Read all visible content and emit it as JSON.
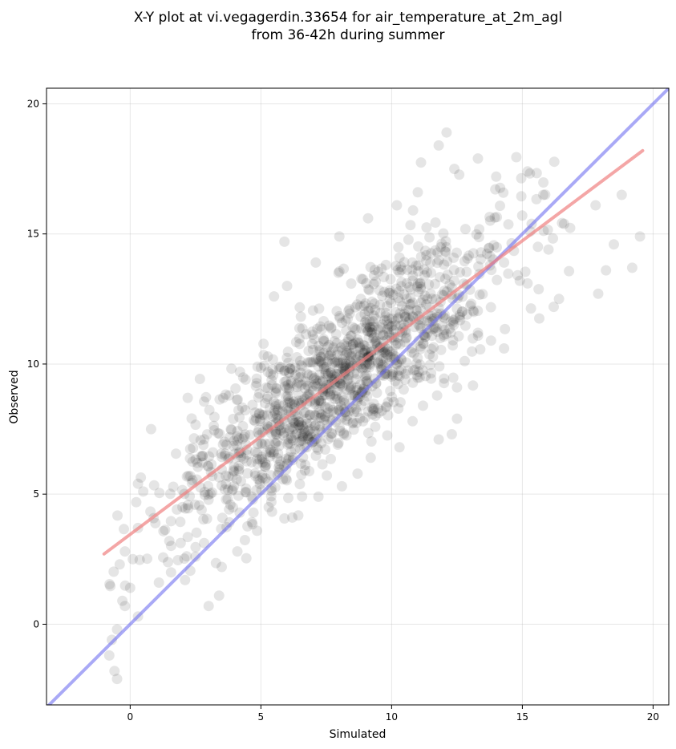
{
  "chart_data": {
    "type": "scatter",
    "title_lines": [
      "X-Y plot at vi.vegagerdin.33654 for air_temperature_at_2m_agl",
      "from 36-42h during summer"
    ],
    "xlabel": "Simulated",
    "ylabel": "Observed",
    "xlim": [
      -3.2,
      20.6
    ],
    "ylim": [
      -3.1,
      20.6
    ],
    "x_ticks": [
      0,
      5,
      10,
      15,
      20
    ],
    "y_ticks": [
      0,
      5,
      10,
      15,
      20
    ],
    "grid": true,
    "colors": {
      "points": "#000000",
      "regression": "#f08080",
      "identity": "#6f6ff0"
    },
    "regression_line": {
      "x": [
        -1.0,
        19.6
      ],
      "y": [
        2.7,
        18.2
      ]
    },
    "identity_line": {
      "x": [
        -3.2,
        20.6
      ],
      "y": [
        -3.2,
        20.6
      ]
    },
    "point_cloud": {
      "count": 1300,
      "slope": 0.75,
      "intercept": 3.5,
      "x_mean": 8.0,
      "x_sd": 3.1,
      "residual_sd": 1.5
    },
    "points": [
      [
        -0.6,
        -1.8
      ],
      [
        -0.5,
        -2.1
      ],
      [
        -0.8,
        -1.2
      ],
      [
        -0.7,
        -0.6
      ],
      [
        -0.5,
        -0.2
      ],
      [
        -0.3,
        0.9
      ],
      [
        -0.2,
        0.7
      ],
      [
        0.0,
        1.4
      ],
      [
        0.3,
        0.3
      ],
      [
        -0.4,
        2.3
      ],
      [
        -0.2,
        2.8
      ],
      [
        0.1,
        2.5
      ],
      [
        0.3,
        3.7
      ],
      [
        0.5,
        5.1
      ],
      [
        0.3,
        5.4
      ],
      [
        0.8,
        7.5
      ],
      [
        2.2,
        8.7
      ],
      [
        3.0,
        0.7
      ],
      [
        3.4,
        1.1
      ],
      [
        2.5,
        2.6
      ],
      [
        4.2,
        9.7
      ],
      [
        5.5,
        12.6
      ],
      [
        5.9,
        14.7
      ],
      [
        6.0,
        13.0
      ],
      [
        7.1,
        13.9
      ],
      [
        8.0,
        14.9
      ],
      [
        9.1,
        15.6
      ],
      [
        10.2,
        16.1
      ],
      [
        11.0,
        16.6
      ],
      [
        11.8,
        18.4
      ],
      [
        12.1,
        18.9
      ],
      [
        12.4,
        17.5
      ],
      [
        13.3,
        17.9
      ],
      [
        14.0,
        17.2
      ],
      [
        15.2,
        17.4
      ],
      [
        15.8,
        16.5
      ],
      [
        15.3,
        15.1
      ],
      [
        16.0,
        14.4
      ],
      [
        16.2,
        12.2
      ],
      [
        16.4,
        12.5
      ],
      [
        17.8,
        16.1
      ],
      [
        18.8,
        16.5
      ],
      [
        18.5,
        14.6
      ],
      [
        19.2,
        13.7
      ],
      [
        19.5,
        14.9
      ],
      [
        17.9,
        12.7
      ],
      [
        18.2,
        13.6
      ],
      [
        15.2,
        13.1
      ],
      [
        14.9,
        13.2
      ],
      [
        13.3,
        11.2
      ],
      [
        12.3,
        7.3
      ],
      [
        12.5,
        7.9
      ],
      [
        11.8,
        7.1
      ],
      [
        10.3,
        6.8
      ],
      [
        9.2,
        6.4
      ],
      [
        8.1,
        5.3
      ],
      [
        7.2,
        4.9
      ],
      [
        6.2,
        4.1
      ],
      [
        5.3,
        4.5
      ],
      [
        4.1,
        2.8
      ],
      [
        3.5,
        2.2
      ],
      [
        2.1,
        1.7
      ],
      [
        1.1,
        1.6
      ],
      [
        1.5,
        3.2
      ],
      [
        2.0,
        4.5
      ],
      [
        14.3,
        10.6
      ],
      [
        13.8,
        10.9
      ],
      [
        12.5,
        9.1
      ],
      [
        11.2,
        8.4
      ],
      [
        10.8,
        7.8
      ]
    ]
  }
}
